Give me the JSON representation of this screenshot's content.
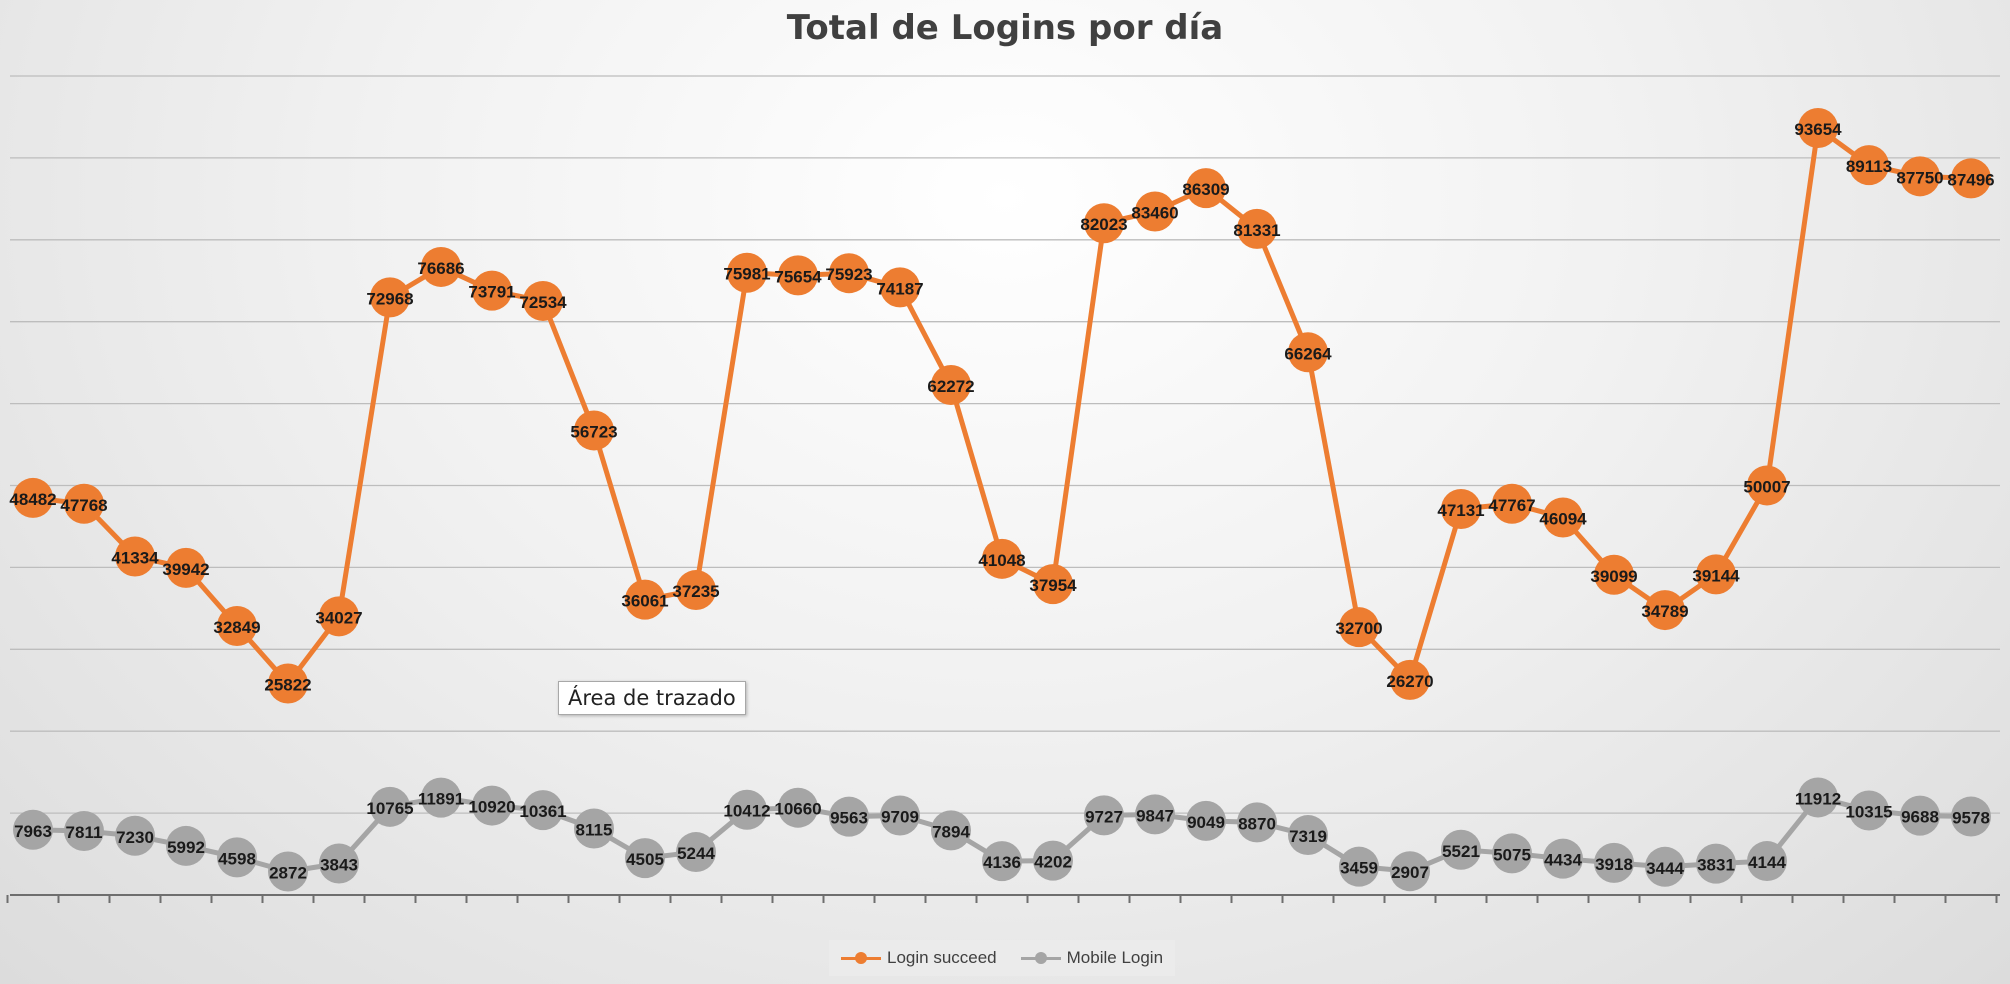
{
  "colors": {
    "login_succeed": "#ED7D31",
    "mobile_login": "#A5A5A5"
  },
  "chart_data": {
    "type": "line",
    "title": "Total de Logins por día",
    "xlabel": "",
    "ylabel": "",
    "ylim": [
      0,
      100000
    ],
    "grid": true,
    "legend_position": "bottom",
    "series": [
      {
        "name": "Login succeed",
        "color": "#ED7D31",
        "values": [
          48482,
          47768,
          41334,
          39942,
          32849,
          25822,
          34027,
          72968,
          76686,
          73791,
          72534,
          56723,
          36061,
          37235,
          75981,
          75654,
          75923,
          74187,
          62272,
          41048,
          37954,
          82023,
          83460,
          86309,
          81331,
          66264,
          32700,
          26270,
          47131,
          47767,
          46094,
          39099,
          34789,
          39144,
          50007,
          93654,
          89113,
          87750,
          87496
        ]
      },
      {
        "name": "Mobile Login",
        "color": "#A5A5A5",
        "values": [
          7963,
          7811,
          7230,
          5992,
          4598,
          2872,
          3843,
          10765,
          11891,
          10920,
          10361,
          8115,
          4505,
          5244,
          10412,
          10660,
          9563,
          9709,
          7894,
          4136,
          4202,
          9727,
          9847,
          9049,
          8870,
          7319,
          3459,
          2907,
          5521,
          5075,
          4434,
          3918,
          3444,
          3831,
          4144,
          11912,
          10315,
          9688,
          9578
        ]
      }
    ]
  },
  "tooltip": {
    "text": "Área de trazado"
  },
  "legend": {
    "items": [
      {
        "label": "Login succeed",
        "icon": "orange-line-marker-icon"
      },
      {
        "label": "Mobile Login",
        "icon": "gray-line-marker-icon"
      }
    ]
  }
}
